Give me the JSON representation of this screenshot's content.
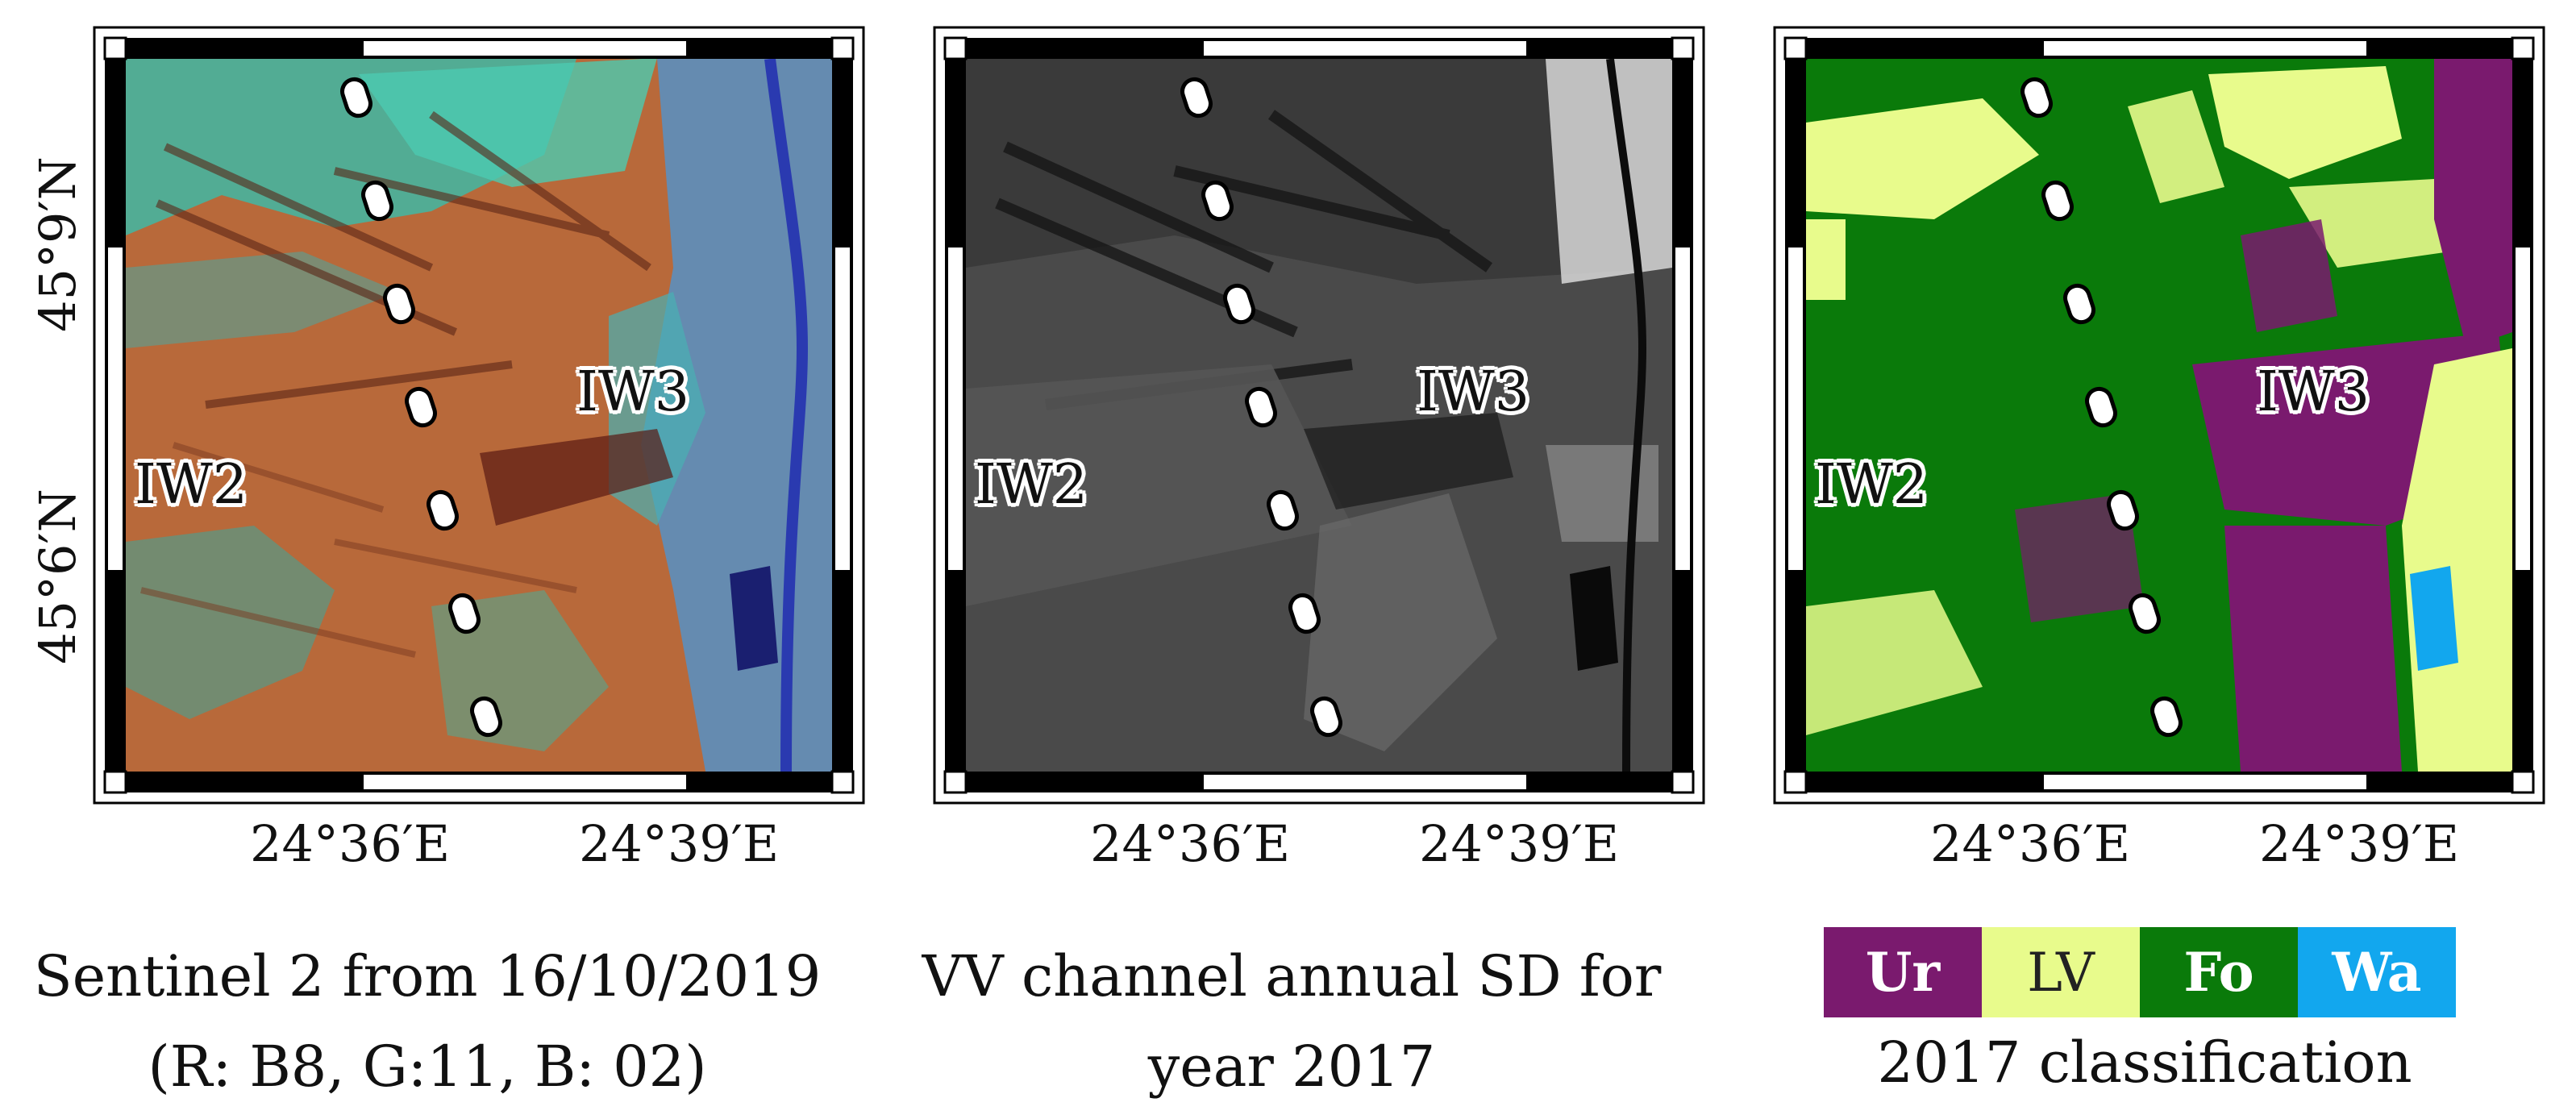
{
  "panels": [
    {
      "id": "optical",
      "caption_line1": "Sentinel 2 from 16/10/2019",
      "caption_line2": "(R: B8, G:11, B: 02)",
      "lat_labels": [
        "45°9′N",
        "45°6′N"
      ],
      "lon_labels": [
        "24°36′E",
        "24°39′E"
      ],
      "swath_labels": [
        "IW2",
        "IW3"
      ]
    },
    {
      "id": "sar",
      "caption_line1": "VV channel annual SD for",
      "caption_line2": "year 2017",
      "lon_labels": [
        "24°36′E",
        "24°39′E"
      ],
      "swath_labels": [
        "IW2",
        "IW3"
      ]
    },
    {
      "id": "classification",
      "caption_line1": "2017 classification",
      "lon_labels": [
        "24°36′E",
        "24°39′E"
      ],
      "swath_labels": [
        "IW2",
        "IW3"
      ]
    }
  ],
  "legend": [
    {
      "label": "Ur",
      "color": "#7a1a6e",
      "text_color": "#ffffff"
    },
    {
      "label": "LV",
      "color": "#e8fb8c",
      "text_color": "#222222"
    },
    {
      "label": "Fo",
      "color": "#0a7a0a",
      "text_color": "#ffffff"
    },
    {
      "label": "Wa",
      "color": "#12a7ee",
      "text_color": "#ffffff"
    }
  ],
  "colors": {
    "optical_orange": "#c0632f",
    "optical_cyan": "#3fc0a8",
    "optical_blue": "#3a6ad0",
    "sar_dark": "#2b2b2b",
    "class_forest": "#0a7a0a",
    "class_low_veg": "#e8fb8c",
    "class_urban": "#7a1a6e",
    "class_water": "#12a7ee"
  }
}
